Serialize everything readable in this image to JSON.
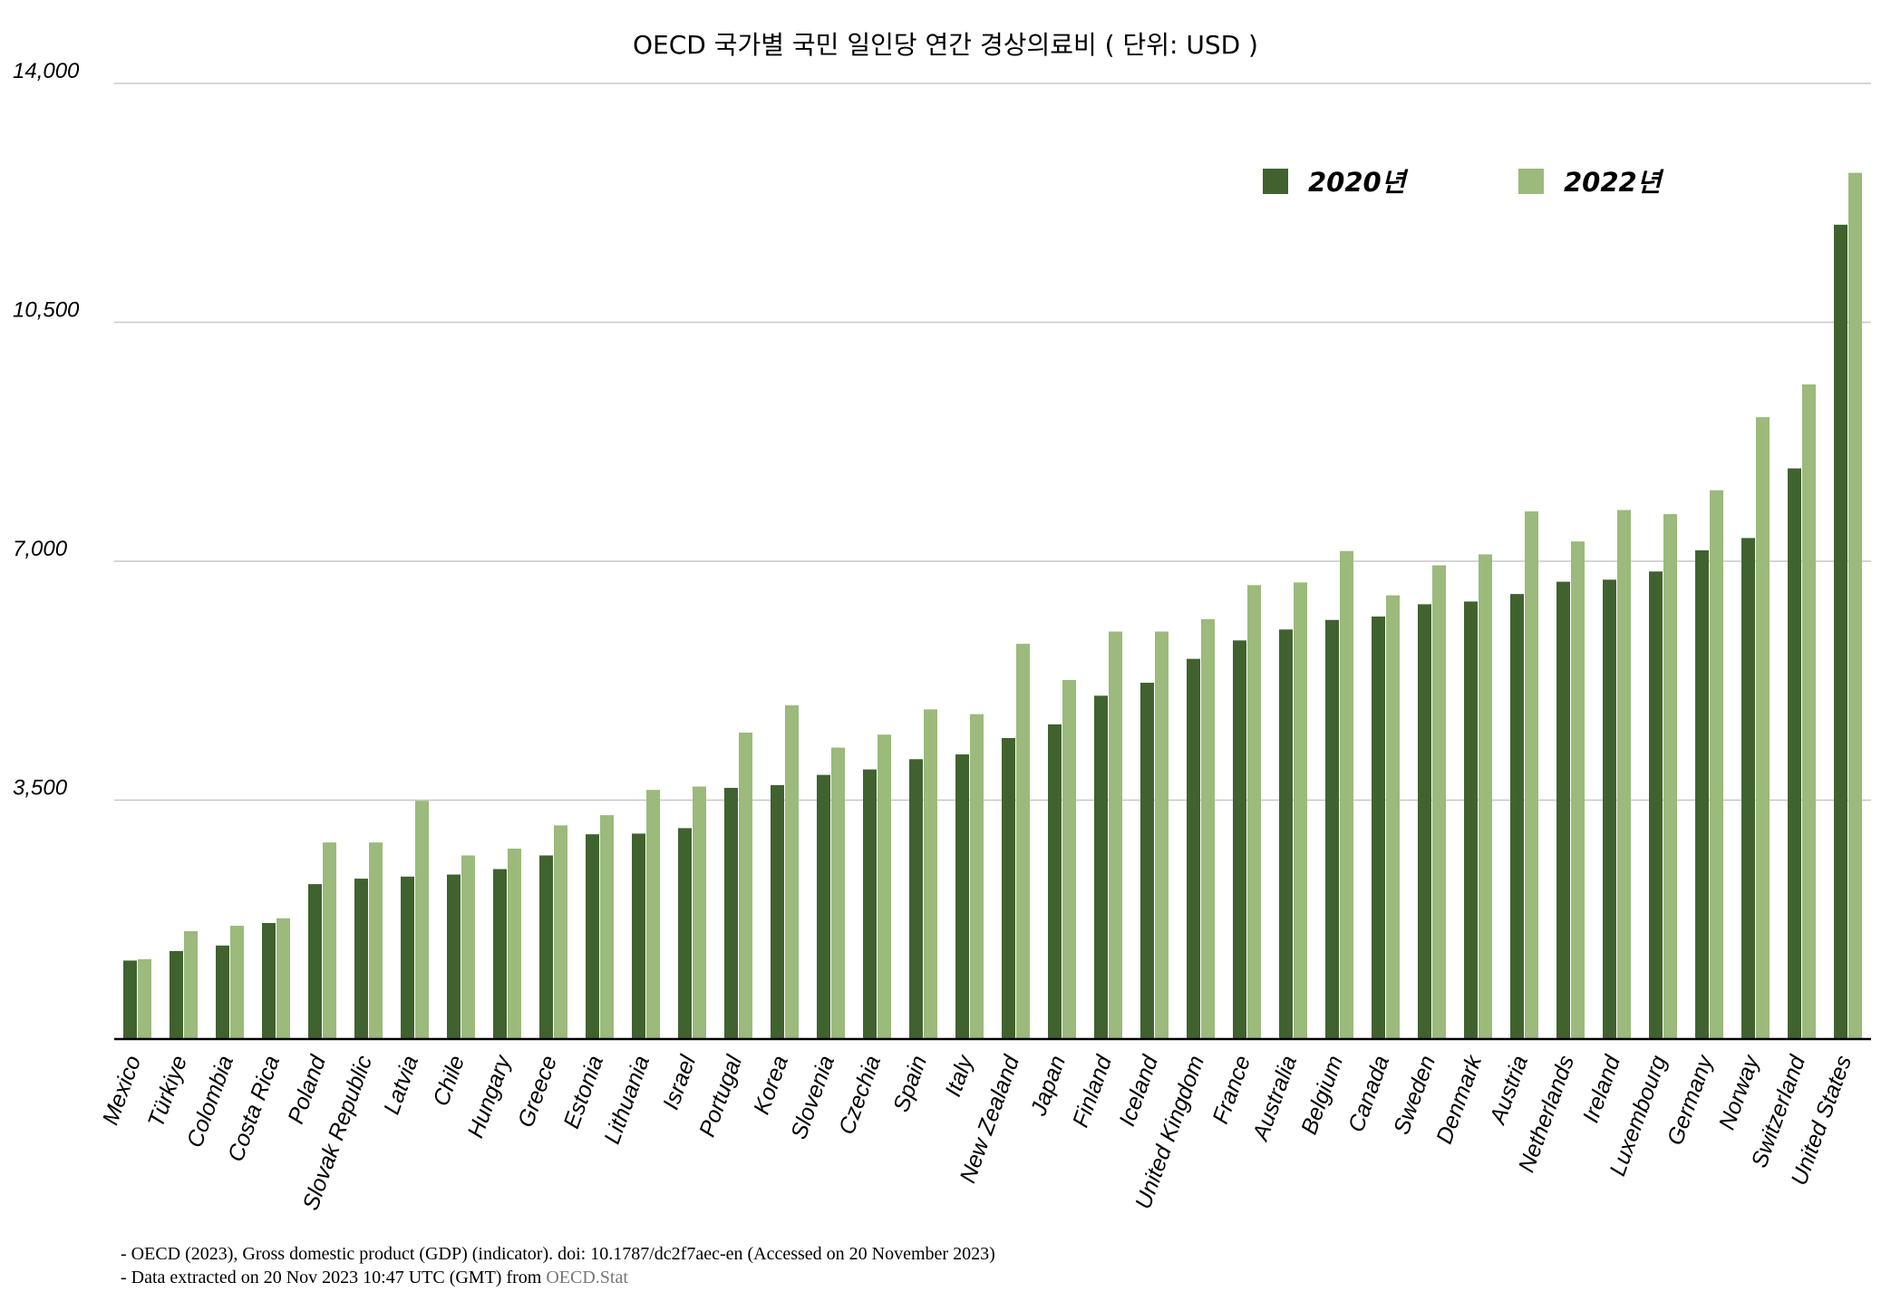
{
  "chart_data": {
    "type": "bar",
    "title": "OECD 국가별 국민 일인당 연간 경상의료비 ( 단위: USD )",
    "xlabel": "",
    "ylabel": "",
    "ylim": [
      0,
      14000
    ],
    "yticks": [
      3500,
      7000,
      10500,
      14000
    ],
    "ytick_labels": [
      "3,500",
      "7,000",
      "10,500",
      "14,000"
    ],
    "grid": true,
    "legend_position": "top-right",
    "categories": [
      "Mexico",
      "Türkiye",
      "Colombia",
      "Costa Rica",
      "Poland",
      "Slovak Republic",
      "Latvia",
      "Chile",
      "Hungary",
      "Greece",
      "Estonia",
      "Lithuania",
      "Israel",
      "Portugal",
      "Korea",
      "Slovenia",
      "Czechia",
      "Spain",
      "Italy",
      "New Zealand",
      "Japan",
      "Finland",
      "Iceland",
      "United Kingdom",
      "France",
      "Australia",
      "Belgium",
      "Canada",
      "Sweden",
      "Denmark",
      "Austria",
      "Netherlands",
      "Ireland",
      "Luxembourg",
      "Germany",
      "Norway",
      "Switzerland",
      "United States"
    ],
    "series": [
      {
        "name": "2020년",
        "color": "#40622f",
        "values": [
          1150,
          1290,
          1370,
          1700,
          2270,
          2350,
          2380,
          2410,
          2490,
          2690,
          3000,
          3010,
          3090,
          3680,
          3720,
          3870,
          3950,
          4100,
          4170,
          4410,
          4610,
          5030,
          5220,
          5570,
          5840,
          6000,
          6140,
          6190,
          6370,
          6410,
          6520,
          6700,
          6730,
          6850,
          7160,
          7340,
          8360,
          11930
        ]
      },
      {
        "name": "2022년",
        "color": "#9bba7b",
        "values": [
          1170,
          1580,
          1660,
          1770,
          2880,
          2880,
          3490,
          2690,
          2790,
          3130,
          3280,
          3650,
          3700,
          4490,
          4890,
          4270,
          4460,
          4830,
          4760,
          5790,
          5260,
          5970,
          5970,
          6150,
          6650,
          6690,
          7150,
          6500,
          6940,
          7100,
          7730,
          7290,
          7750,
          7690,
          8040,
          9110,
          9590,
          12690
        ]
      }
    ]
  },
  "footnotes": {
    "line1": "- OECD (2023), Gross domestic product (GDP) (indicator). doi: 10.1787/dc2f7aec-en (Accessed on 20 November 2023)",
    "line2_prefix": "- Data extracted on 20 Nov 2023 10:47 UTC (GMT) from ",
    "line2_link": "OECD.Stat"
  }
}
